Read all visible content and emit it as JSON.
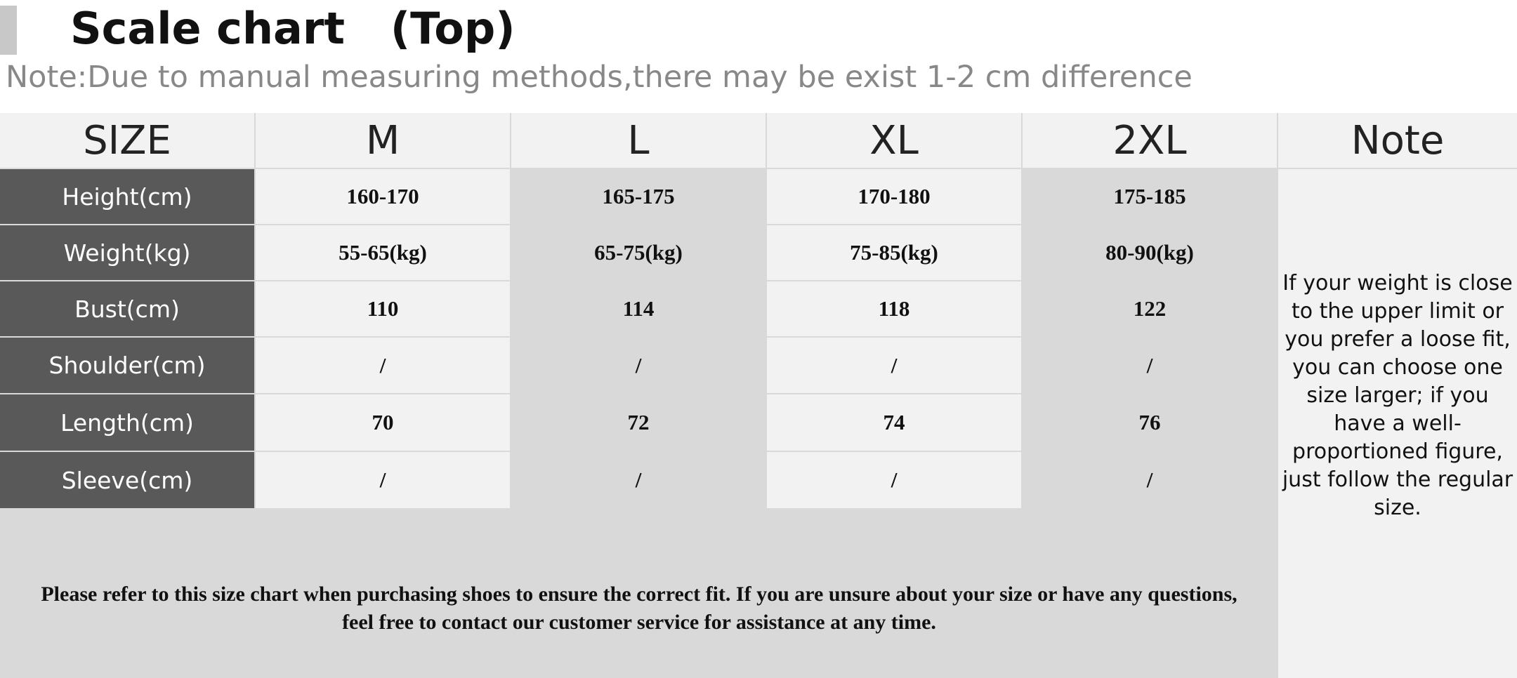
{
  "header": {
    "title": "Scale chart   (Top)",
    "note": "Note:Due to manual measuring methods,there may be exist 1-2 cm difference"
  },
  "table": {
    "corner_label": "SIZE",
    "sizes": [
      "M",
      "L",
      "XL",
      "2XL"
    ],
    "note_header": "Note",
    "rows": [
      {
        "label": "Height(cm)",
        "values": [
          "160-170",
          "165-175",
          "170-180",
          "175-185"
        ]
      },
      {
        "label": "Weight(kg)",
        "values": [
          "55-65(kg)",
          "65-75(kg)",
          "75-85(kg)",
          "80-90(kg)"
        ]
      },
      {
        "label": "Bust(cm)",
        "values": [
          "110",
          "114",
          "118",
          "122"
        ]
      },
      {
        "label": "Shoulder(cm)",
        "values": [
          "/",
          "/",
          "/",
          "/"
        ]
      },
      {
        "label": "Length(cm)",
        "values": [
          "70",
          "72",
          "74",
          "76"
        ]
      },
      {
        "label": "Sleeve(cm)",
        "values": [
          "/",
          "/",
          "/",
          "/"
        ]
      }
    ],
    "note_text": "If your weight is close to the upper limit or you prefer a loose fit, you can choose one size larger; if you have a well-proportioned figure, just follow the regular size.",
    "footer_text": "Please refer to this size chart when purchasing shoes to ensure the correct fit. If you are unsure about your size or have any questions, feel free to contact our customer service for assistance at any time."
  },
  "colors": {
    "label_bg": "#595959",
    "light_cell": "#f2f2f2",
    "dark_cell": "#d9d9d9",
    "accent": "#c8c8c8"
  }
}
